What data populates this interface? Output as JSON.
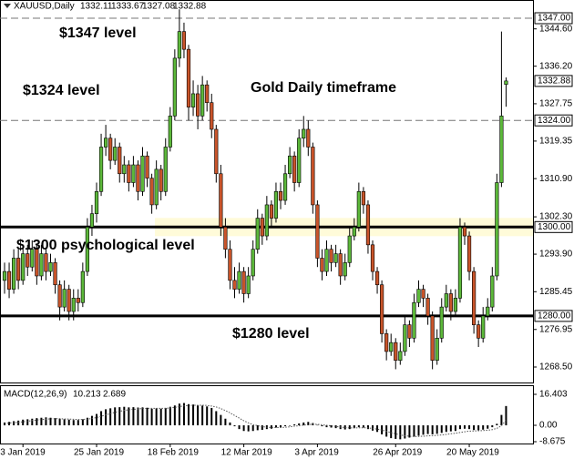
{
  "chart_data": [
    {
      "type": "candlestick",
      "symbol": "XAUUSD,Daily",
      "bull_color": "#5cb83a",
      "bear_color": "#c9542a",
      "ylim": [
        1265.4,
        1349.0
      ],
      "yticks": [
        {
          "value": 1344.6,
          "label": "1344.60"
        },
        {
          "value": 1336.2,
          "label": "1336.20"
        },
        1327.75,
        1319.35,
        {
          "value": 1310.9,
          "label": "1310.90"
        },
        {
          "value": 1302.3,
          "label": "1302.30"
        },
        {
          "value": 1293.9,
          "label": "1293.90"
        },
        1285.45,
        1276.95,
        {
          "value": 1268.5,
          "label": "1268.50"
        }
      ],
      "levels": [
        {
          "value": 1347,
          "label": "1347.00",
          "style": "dashed"
        },
        {
          "value": 1324,
          "label": "1324.00",
          "style": "dashed"
        },
        {
          "value": 1300,
          "label": "1300.00",
          "style": "solid"
        },
        {
          "value": 1280,
          "label": "1280.00",
          "style": "solid"
        }
      ],
      "annotations": [
        "$1347 level",
        "$1324 level",
        "Gold Daily timeframe",
        "$1300 psychological level",
        "$1280 level"
      ],
      "categories": [
        null,
        null,
        null,
        null,
        "3 Jan 2019",
        null,
        null,
        null,
        null,
        null,
        null,
        null,
        null,
        null,
        null,
        null,
        null,
        null,
        null,
        null,
        "25 Jan 2019",
        null,
        null,
        null,
        null,
        null,
        null,
        null,
        null,
        null,
        null,
        null,
        null,
        null,
        null,
        null,
        "18 Feb 2019",
        null,
        null,
        null,
        null,
        null,
        null,
        null,
        null,
        null,
        null,
        null,
        null,
        null,
        null,
        null,
        "12 Mar 2019",
        null,
        null,
        null,
        null,
        null,
        null,
        null,
        null,
        null,
        null,
        null,
        null,
        null,
        null,
        null,
        "3 Apr 2019",
        null,
        null,
        null,
        null,
        null,
        null,
        null,
        null,
        null,
        null,
        null,
        null,
        null,
        null,
        null,
        null,
        "26 Apr 2019",
        null,
        null,
        null,
        null,
        null,
        null,
        null,
        null,
        null,
        null,
        null,
        null,
        null,
        null,
        null,
        "20 May 2019",
        null,
        null,
        null,
        null,
        null,
        null,
        null,
        null
      ],
      "candles": [
        [
          1288,
          1292,
          1285,
          1290
        ],
        [
          1290,
          1292,
          1284,
          1286
        ],
        [
          1286,
          1295,
          1285,
          1293
        ],
        [
          1293,
          1295,
          1286,
          1288
        ],
        [
          1288,
          1296,
          1287,
          1294
        ],
        [
          1294,
          1296,
          1289,
          1291
        ],
        [
          1291,
          1297,
          1290,
          1295
        ],
        [
          1295,
          1296,
          1287,
          1289
        ],
        [
          1289,
          1296,
          1288,
          1294
        ],
        [
          1294,
          1295,
          1288,
          1290
        ],
        [
          1290,
          1294,
          1289,
          1292
        ],
        [
          1292,
          1293,
          1285,
          1287
        ],
        [
          1287,
          1288,
          1279,
          1282
        ],
        [
          1282,
          1288,
          1281,
          1286
        ],
        [
          1286,
          1287,
          1279,
          1281
        ],
        [
          1281,
          1286,
          1279,
          1284
        ],
        [
          1284,
          1286,
          1281,
          1283
        ],
        [
          1283,
          1292,
          1282,
          1290
        ],
        [
          1290,
          1302,
          1289,
          1300
        ],
        [
          1300,
          1305,
          1298,
          1303
        ],
        [
          1303,
          1310,
          1301,
          1308
        ],
        [
          1308,
          1321,
          1307,
          1318
        ],
        [
          1318,
          1323,
          1316,
          1320
        ],
        [
          1320,
          1321,
          1313,
          1315
        ],
        [
          1315,
          1320,
          1314,
          1318
        ],
        [
          1318,
          1319,
          1310,
          1312
        ],
        [
          1312,
          1316,
          1310,
          1314
        ],
        [
          1314,
          1315,
          1308,
          1310
        ],
        [
          1310,
          1316,
          1309,
          1314
        ],
        [
          1314,
          1315,
          1306,
          1308
        ],
        [
          1308,
          1318,
          1307,
          1316
        ],
        [
          1316,
          1317,
          1309,
          1311
        ],
        [
          1311,
          1312,
          1303,
          1305
        ],
        [
          1305,
          1315,
          1304,
          1313
        ],
        [
          1313,
          1314,
          1306,
          1308
        ],
        [
          1308,
          1320,
          1307,
          1318
        ],
        [
          1318,
          1327,
          1317,
          1325
        ],
        [
          1325,
          1340,
          1324,
          1338
        ],
        [
          1338,
          1349,
          1336,
          1344
        ],
        [
          1344,
          1346,
          1338,
          1340
        ],
        [
          1340,
          1341,
          1324,
          1327
        ],
        [
          1327,
          1333,
          1325,
          1330
        ],
        [
          1330,
          1332,
          1322,
          1325
        ],
        [
          1325,
          1334,
          1324,
          1332
        ],
        [
          1332,
          1333,
          1326,
          1328
        ],
        [
          1328,
          1330,
          1320,
          1322
        ],
        [
          1322,
          1323,
          1310,
          1312
        ],
        [
          1312,
          1314,
          1298,
          1300
        ],
        [
          1300,
          1302,
          1293,
          1295
        ],
        [
          1295,
          1297,
          1286,
          1288
        ],
        [
          1288,
          1291,
          1284,
          1286
        ],
        [
          1286,
          1292,
          1285,
          1290
        ],
        [
          1290,
          1291,
          1283,
          1285
        ],
        [
          1285,
          1291,
          1284,
          1289
        ],
        [
          1289,
          1297,
          1288,
          1295
        ],
        [
          1295,
          1304,
          1294,
          1302
        ],
        [
          1302,
          1303,
          1296,
          1298
        ],
        [
          1298,
          1307,
          1297,
          1305
        ],
        [
          1305,
          1306,
          1300,
          1302
        ],
        [
          1302,
          1310,
          1301,
          1308
        ],
        [
          1308,
          1310,
          1304,
          1306
        ],
        [
          1306,
          1314,
          1305,
          1312
        ],
        [
          1312,
          1318,
          1311,
          1316
        ],
        [
          1316,
          1317,
          1308,
          1310
        ],
        [
          1310,
          1322,
          1309,
          1320
        ],
        [
          1320,
          1325,
          1318,
          1322
        ],
        [
          1322,
          1324,
          1316,
          1318
        ],
        [
          1318,
          1319,
          1303,
          1305
        ],
        [
          1305,
          1306,
          1291,
          1293
        ],
        [
          1293,
          1295,
          1288,
          1290
        ],
        [
          1290,
          1297,
          1289,
          1295
        ],
        [
          1295,
          1296,
          1290,
          1292
        ],
        [
          1292,
          1296,
          1291,
          1294
        ],
        [
          1294,
          1295,
          1287,
          1289
        ],
        [
          1289,
          1294,
          1288,
          1292
        ],
        [
          1292,
          1300,
          1291,
          1298
        ],
        [
          1298,
          1302,
          1297,
          1300
        ],
        [
          1300,
          1310,
          1299,
          1308
        ],
        [
          1308,
          1309,
          1303,
          1305
        ],
        [
          1305,
          1306,
          1294,
          1296
        ],
        [
          1296,
          1297,
          1288,
          1290
        ],
        [
          1290,
          1291,
          1285,
          1287
        ],
        [
          1287,
          1288,
          1274,
          1276
        ],
        [
          1276,
          1277,
          1270,
          1272
        ],
        [
          1272,
          1276,
          1271,
          1274
        ],
        [
          1274,
          1275,
          1268,
          1270
        ],
        [
          1270,
          1274,
          1269,
          1272
        ],
        [
          1272,
          1280,
          1271,
          1278
        ],
        [
          1278,
          1279,
          1273,
          1275
        ],
        [
          1275,
          1285,
          1274,
          1283
        ],
        [
          1283,
          1288,
          1282,
          1286
        ],
        [
          1286,
          1287,
          1282,
          1284
        ],
        [
          1284,
          1285,
          1278,
          1280
        ],
        [
          1280,
          1281,
          1268,
          1270
        ],
        [
          1270,
          1277,
          1269,
          1275
        ],
        [
          1275,
          1284,
          1274,
          1282
        ],
        [
          1282,
          1287,
          1281,
          1285
        ],
        [
          1285,
          1286,
          1279,
          1281
        ],
        [
          1281,
          1286,
          1280,
          1284
        ],
        [
          1284,
          1302,
          1283,
          1300
        ],
        [
          1300,
          1301,
          1296,
          1298
        ],
        [
          1298,
          1299,
          1288,
          1290
        ],
        [
          1290,
          1291,
          1276,
          1278
        ],
        [
          1278,
          1279,
          1273,
          1275
        ],
        [
          1275,
          1282,
          1274,
          1280
        ],
        [
          1280,
          1284,
          1279,
          1282
        ],
        [
          1282,
          1291,
          1281,
          1289
        ],
        [
          1289,
          1312,
          1288,
          1310
        ],
        [
          1310,
          1344,
          1309,
          1325
        ],
        [
          1332.11,
          1333.67,
          1327.08,
          1332.88
        ]
      ]
    },
    {
      "type": "macd",
      "title": "MACD(12,26,9)",
      "bar_color": "#000000",
      "signal_color": "#555555",
      "ylim": [
        -8.675,
        16.403
      ],
      "yticks": [
        16.403,
        {
          "value": 0,
          "label": "0.00"
        },
        -8.675
      ],
      "histogram": [
        1.5,
        1.8,
        2.2,
        2.5,
        3,
        3.2,
        3.5,
        3.8,
        4,
        4.2,
        4,
        3.8,
        3.5,
        3.2,
        3,
        2.8,
        2.8,
        3.2,
        4,
        5,
        6,
        7.5,
        8.5,
        9,
        9.5,
        9.6,
        9.8,
        9.5,
        9.6,
        9.4,
        9.5,
        9.3,
        8.8,
        9,
        8.8,
        9.2,
        9.8,
        10.5,
        11.5,
        11.8,
        11.2,
        11,
        10.5,
        10.4,
        10,
        9.2,
        7.5,
        5.5,
        3.5,
        1.5,
        -0.5,
        -2,
        -3,
        -3.2,
        -3,
        -2.6,
        -2.4,
        -2,
        -1.8,
        -1.2,
        -1,
        -0.5,
        0,
        0.5,
        1,
        1.5,
        1.8,
        1.2,
        0.2,
        -0.5,
        -1,
        -1.2,
        -1.5,
        -2,
        -2.2,
        -2,
        -1.5,
        -1,
        -1.2,
        -2,
        -2.8,
        -3.5,
        -4.8,
        -6,
        -6.8,
        -7.2,
        -7.4,
        -7,
        -6.5,
        -6,
        -5.5,
        -5,
        -4.6,
        -4.8,
        -4.5,
        -4,
        -3.5,
        -3.2,
        -3,
        -2,
        -1.8,
        -2,
        -2.5,
        -2.6,
        -2.3,
        -1.8,
        -1,
        0.8,
        5.5,
        10.213
      ],
      "signal": [
        1,
        1.2,
        1.4,
        1.6,
        1.9,
        2.2,
        2.5,
        2.8,
        3,
        3.3,
        3.4,
        3.5,
        3.5,
        3.4,
        3.3,
        3.2,
        3.1,
        3.1,
        3.3,
        3.6,
        4.1,
        4.8,
        5.5,
        6.2,
        6.9,
        7.4,
        7.9,
        8.2,
        8.5,
        8.7,
        8.9,
        9,
        9,
        9,
        9,
        9,
        9.2,
        9.5,
        9.9,
        10.3,
        10.5,
        10.6,
        10.6,
        10.6,
        10.5,
        10.2,
        9.7,
        8.9,
        7.8,
        6.6,
        5.2,
        3.8,
        2.4,
        1.3,
        0.4,
        -0.2,
        -0.7,
        -1,
        -1.2,
        -1.2,
        -1.2,
        -1,
        -0.8,
        -0.5,
        -0.2,
        0.1,
        0.4,
        0.6,
        0.5,
        0.3,
        0,
        -0.3,
        -0.6,
        -0.9,
        -1.2,
        -1.4,
        -1.4,
        -1.3,
        -1.3,
        -1.4,
        -1.7,
        -2,
        -2.5,
        -3.2,
        -3.9,
        -4.5,
        -5.1,
        -5.5,
        -5.8,
        -5.9,
        -5.9,
        -5.8,
        -5.6,
        -5.5,
        -5.3,
        -5.1,
        -4.8,
        -4.5,
        -4.2,
        -3.8,
        -3.4,
        -3.1,
        -3,
        -2.9,
        -2.8,
        -2.6,
        -2.3,
        -1.6,
        -0.2,
        2.689
      ]
    }
  ]
}
